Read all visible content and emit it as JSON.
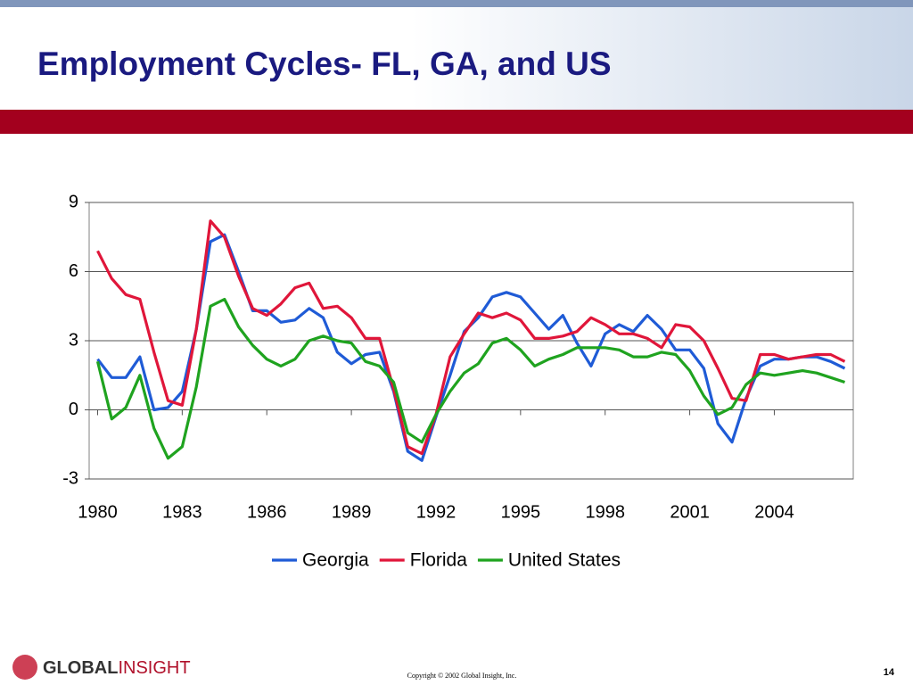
{
  "slide": {
    "title": "Employment Cycles- FL, GA, and US",
    "logo_bold": "GLOBAL",
    "logo_light": "INSIGHT",
    "copyright": "Copyright © 2002 Global Insight, Inc.",
    "page_number": "14"
  },
  "chart_data": {
    "type": "line",
    "x": [
      1980.0,
      1980.5,
      1981.0,
      1981.5,
      1982.0,
      1982.5,
      1983.0,
      1983.5,
      1984.0,
      1984.5,
      1985.0,
      1985.5,
      1986.0,
      1986.5,
      1987.0,
      1987.5,
      1988.0,
      1988.5,
      1989.0,
      1989.5,
      1990.0,
      1990.5,
      1991.0,
      1991.5,
      1992.0,
      1992.5,
      1993.0,
      1993.5,
      1994.0,
      1994.5,
      1995.0,
      1995.5,
      1996.0,
      1996.5,
      1997.0,
      1997.5,
      1998.0,
      1998.5,
      1999.0,
      1999.5,
      2000.0,
      2000.5,
      2001.0,
      2001.5,
      2002.0,
      2002.5,
      2003.0,
      2003.5,
      2004.0,
      2004.5,
      2005.0,
      2005.5,
      2006.0,
      2006.5
    ],
    "series": [
      {
        "name": "Georgia",
        "color": "#1f5bd6",
        "values": [
          2.2,
          1.4,
          1.4,
          2.3,
          0.0,
          0.1,
          0.8,
          3.5,
          7.3,
          7.6,
          6.0,
          4.3,
          4.3,
          3.8,
          3.9,
          4.4,
          4.0,
          2.5,
          2.0,
          2.4,
          2.5,
          0.8,
          -1.8,
          -2.2,
          -0.3,
          1.5,
          3.4,
          4.0,
          4.9,
          5.1,
          4.9,
          4.2,
          3.5,
          4.1,
          2.9,
          1.9,
          3.3,
          3.7,
          3.4,
          4.1,
          3.5,
          2.6,
          2.6,
          1.8,
          -0.6,
          -1.4,
          0.5,
          1.9,
          2.2,
          2.2,
          2.3,
          2.3,
          2.1,
          1.8
        ]
      },
      {
        "name": "Florida",
        "color": "#e0163a",
        "values": [
          6.9,
          5.7,
          5.0,
          4.8,
          2.5,
          0.4,
          0.2,
          3.5,
          8.2,
          7.5,
          5.8,
          4.4,
          4.1,
          4.6,
          5.3,
          5.5,
          4.4,
          4.5,
          4.0,
          3.1,
          3.1,
          0.9,
          -1.6,
          -1.9,
          -0.2,
          2.3,
          3.3,
          4.2,
          4.0,
          4.2,
          3.9,
          3.1,
          3.1,
          3.2,
          3.4,
          4.0,
          3.7,
          3.3,
          3.3,
          3.1,
          2.7,
          3.7,
          3.6,
          3.0,
          1.8,
          0.5,
          0.4,
          2.4,
          2.4,
          2.2,
          2.3,
          2.4,
          2.4,
          2.1
        ]
      },
      {
        "name": "United States",
        "color": "#1fa31f",
        "values": [
          2.1,
          -0.4,
          0.1,
          1.5,
          -0.8,
          -2.1,
          -1.6,
          1.0,
          4.5,
          4.8,
          3.6,
          2.8,
          2.2,
          1.9,
          2.2,
          3.0,
          3.2,
          3.0,
          2.9,
          2.1,
          1.9,
          1.2,
          -1.0,
          -1.4,
          -0.2,
          0.8,
          1.6,
          2.0,
          2.9,
          3.1,
          2.6,
          1.9,
          2.2,
          2.4,
          2.7,
          2.7,
          2.7,
          2.6,
          2.3,
          2.3,
          2.5,
          2.4,
          1.7,
          0.6,
          -0.2,
          0.1,
          1.1,
          1.6,
          1.5,
          1.6,
          1.7,
          1.6,
          1.4,
          1.2
        ]
      }
    ],
    "xlim": [
      1979.7,
      2006.8
    ],
    "xticks": [
      1980,
      1983,
      1986,
      1989,
      1992,
      1995,
      1998,
      2001,
      2004
    ],
    "ylim": [
      -3,
      9
    ],
    "yticks": [
      -3,
      0,
      3,
      6,
      9
    ],
    "grid": true,
    "legend": "bottom"
  }
}
